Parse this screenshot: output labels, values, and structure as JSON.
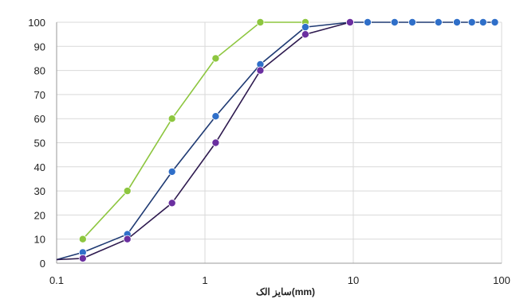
{
  "chart_data": {
    "type": "line",
    "xlabel": "سایز الک(mm)",
    "ylabel": "",
    "x_scale": "log",
    "xlim": [
      0.1,
      100
    ],
    "ylim": [
      0,
      100
    ],
    "x_ticks": [
      "0.1",
      "1",
      "10",
      "100"
    ],
    "y_ticks": [
      "0",
      "10",
      "20",
      "30",
      "40",
      "50",
      "60",
      "70",
      "80",
      "90",
      "100"
    ],
    "grid": true,
    "series": [
      {
        "color": "#8dc63f",
        "x": [
          0.15,
          0.3,
          0.6,
          1.18,
          2.36,
          4.75
        ],
        "y": [
          10,
          30,
          60,
          85,
          100,
          100
        ]
      },
      {
        "color": "#2f6fc9",
        "x": [
          0.1,
          0.15,
          0.3,
          0.6,
          1.18,
          2.36,
          4.75,
          9.5,
          12.5,
          19,
          25,
          37.5,
          50,
          63,
          75,
          90
        ],
        "y": [
          1.5,
          4.5,
          12,
          38,
          61,
          82.5,
          98,
          100,
          100,
          100,
          100,
          100,
          100,
          100,
          100,
          100
        ]
      },
      {
        "color": "#6b2fa0",
        "x": [
          0.1,
          0.15,
          0.3,
          0.6,
          1.18,
          2.36,
          4.75,
          9.5
        ],
        "y": [
          1.5,
          2,
          10,
          25,
          50,
          80,
          95,
          100
        ]
      }
    ]
  }
}
